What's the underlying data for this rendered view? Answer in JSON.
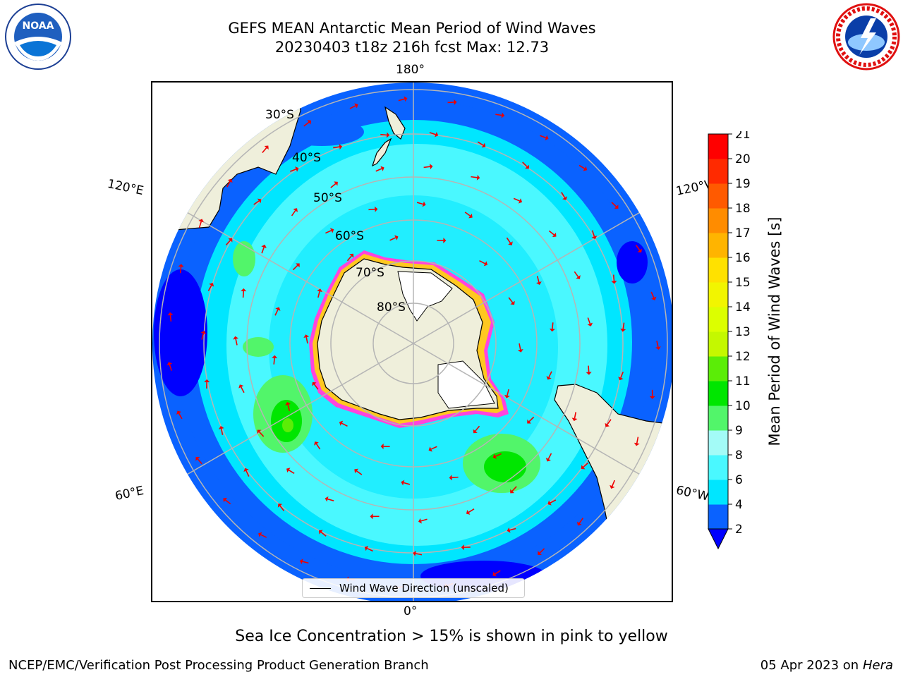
{
  "title_line1": "GEFS MEAN Antarctic Mean Period of Wind Waves",
  "title_line2": "20230403 t18z 216h fcst   Max: 12.73",
  "longitude_labels": {
    "top": "180°",
    "bottom": "0°",
    "upper_left": "120°E",
    "upper_right": "120°W",
    "lower_left": "60°E",
    "lower_right": "60°W"
  },
  "latitude_labels": [
    "30°S",
    "40°S",
    "50°S",
    "60°S",
    "70°S",
    "80°S"
  ],
  "legend": {
    "label": "Wind Wave Direction (unscaled)"
  },
  "colorbar": {
    "label": "Mean Period of Wind Waves [s]",
    "ticks": [
      "2",
      "4",
      "6",
      "8",
      "9",
      "10",
      "11",
      "12",
      "13",
      "14",
      "15",
      "16",
      "17",
      "18",
      "19",
      "20",
      "21"
    ],
    "colors": [
      "#0a62ff",
      "#00e6ff",
      "#4af8ff",
      "#a3fbf7",
      "#52f56a",
      "#00e600",
      "#5bed07",
      "#c4f800",
      "#dcff00",
      "#f2f500",
      "#ffe100",
      "#ffb400",
      "#ff8c00",
      "#ff5a00",
      "#ff2a00",
      "#ff0000"
    ],
    "under_color": "#0000ff"
  },
  "subcaption": "Sea Ice Concentration > 15% is shown in pink to yellow",
  "footer_left": "NCEP/EMC/Verification Post Processing Product Generation Branch",
  "footer_right_date": "05 Apr 2023 on",
  "footer_right_machine": "Hera",
  "logos": {
    "left": "noaa-logo",
    "right": "nws-logo"
  },
  "colors": {
    "land": "#efefdb",
    "ocean_low": "#0a62ff",
    "ocean_mid": "#00e6ff",
    "ocean_high": "#4af8ff",
    "green_zone": "#52f56a",
    "ice_edge_pink": "#ff44dd",
    "ice_edge_yellow": "#ffc820",
    "arrow": "#ee0000",
    "grid": "#b5b5b5"
  }
}
